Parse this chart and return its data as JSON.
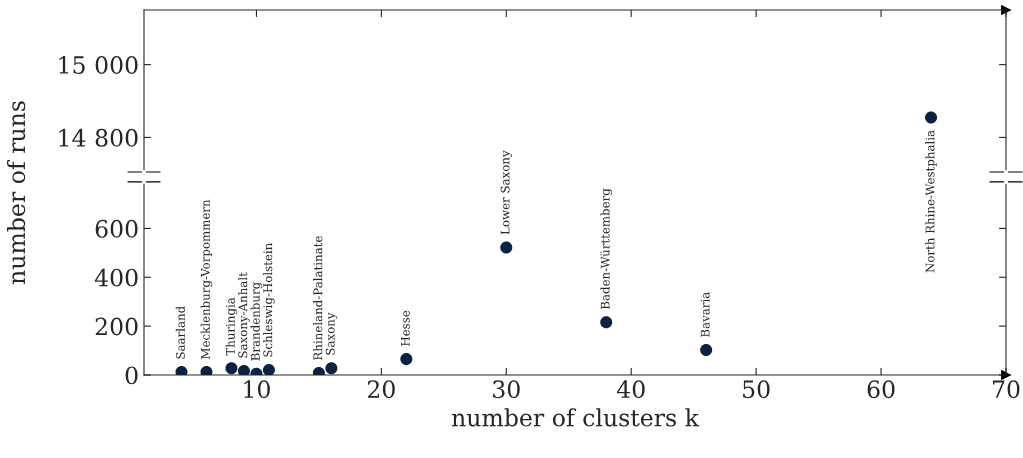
{
  "chart_data": [
    {
      "type": "scatter",
      "x": [
        64
      ],
      "values": [
        14855
      ],
      "color": "#0b2240",
      "marker": "circle",
      "grid": false,
      "legend": false,
      "tick_labels": "y",
      "xlim": [
        1,
        70
      ],
      "xticks": [
        10,
        20,
        30,
        40,
        50,
        60,
        70
      ],
      "ylim": [
        14705,
        15150
      ],
      "yticks": [
        {
          "value": 14800,
          "label": "14 800"
        },
        {
          "value": 15000,
          "label": "15 000"
        }
      ],
      "annotations": [
        {
          "text": "North Rhine-Westphalia",
          "x": 64,
          "y": 14855
        }
      ]
    },
    {
      "type": "scatter",
      "x": [
        4,
        6,
        8,
        9,
        10,
        11,
        15,
        16,
        22,
        30,
        38,
        46
      ],
      "values": [
        12,
        12,
        28,
        16,
        5,
        20,
        8,
        28,
        65,
        522,
        216,
        102
      ],
      "color": "#0b2240",
      "marker": "circle",
      "grid": false,
      "legend": false,
      "xlim": [
        1,
        70
      ],
      "xticks": [
        10,
        20,
        30,
        40,
        50,
        60,
        70
      ],
      "ylim": [
        0,
        790
      ],
      "yticks": [
        0,
        200,
        400,
        600
      ],
      "xlabel": "number of clusters k",
      "ylabel": "number of runs",
      "annotations": [
        {
          "text": "Saarland",
          "x": 4,
          "y": 12
        },
        {
          "text": "Mecklenburg-Vorpommern",
          "x": 6,
          "y": 12
        },
        {
          "text": "Thuringia",
          "x": 8,
          "y": 28
        },
        {
          "text": "Saxony-Anhalt",
          "x": 9,
          "y": 16
        },
        {
          "text": "Brandenburg",
          "x": 10,
          "y": 5
        },
        {
          "text": "Schleswig-Holstein",
          "x": 11,
          "y": 20
        },
        {
          "text": "Rhineland-Palatinate",
          "x": 15,
          "y": 8
        },
        {
          "text": "Saxony",
          "x": 16,
          "y": 28
        },
        {
          "text": "Hesse",
          "x": 22,
          "y": 65
        },
        {
          "text": "Lower Saxony",
          "x": 30,
          "y": 522
        },
        {
          "text": "Baden-Württemberg",
          "x": 38,
          "y": 216
        },
        {
          "text": "Bavaria",
          "x": 46,
          "y": 102
        }
      ]
    }
  ]
}
